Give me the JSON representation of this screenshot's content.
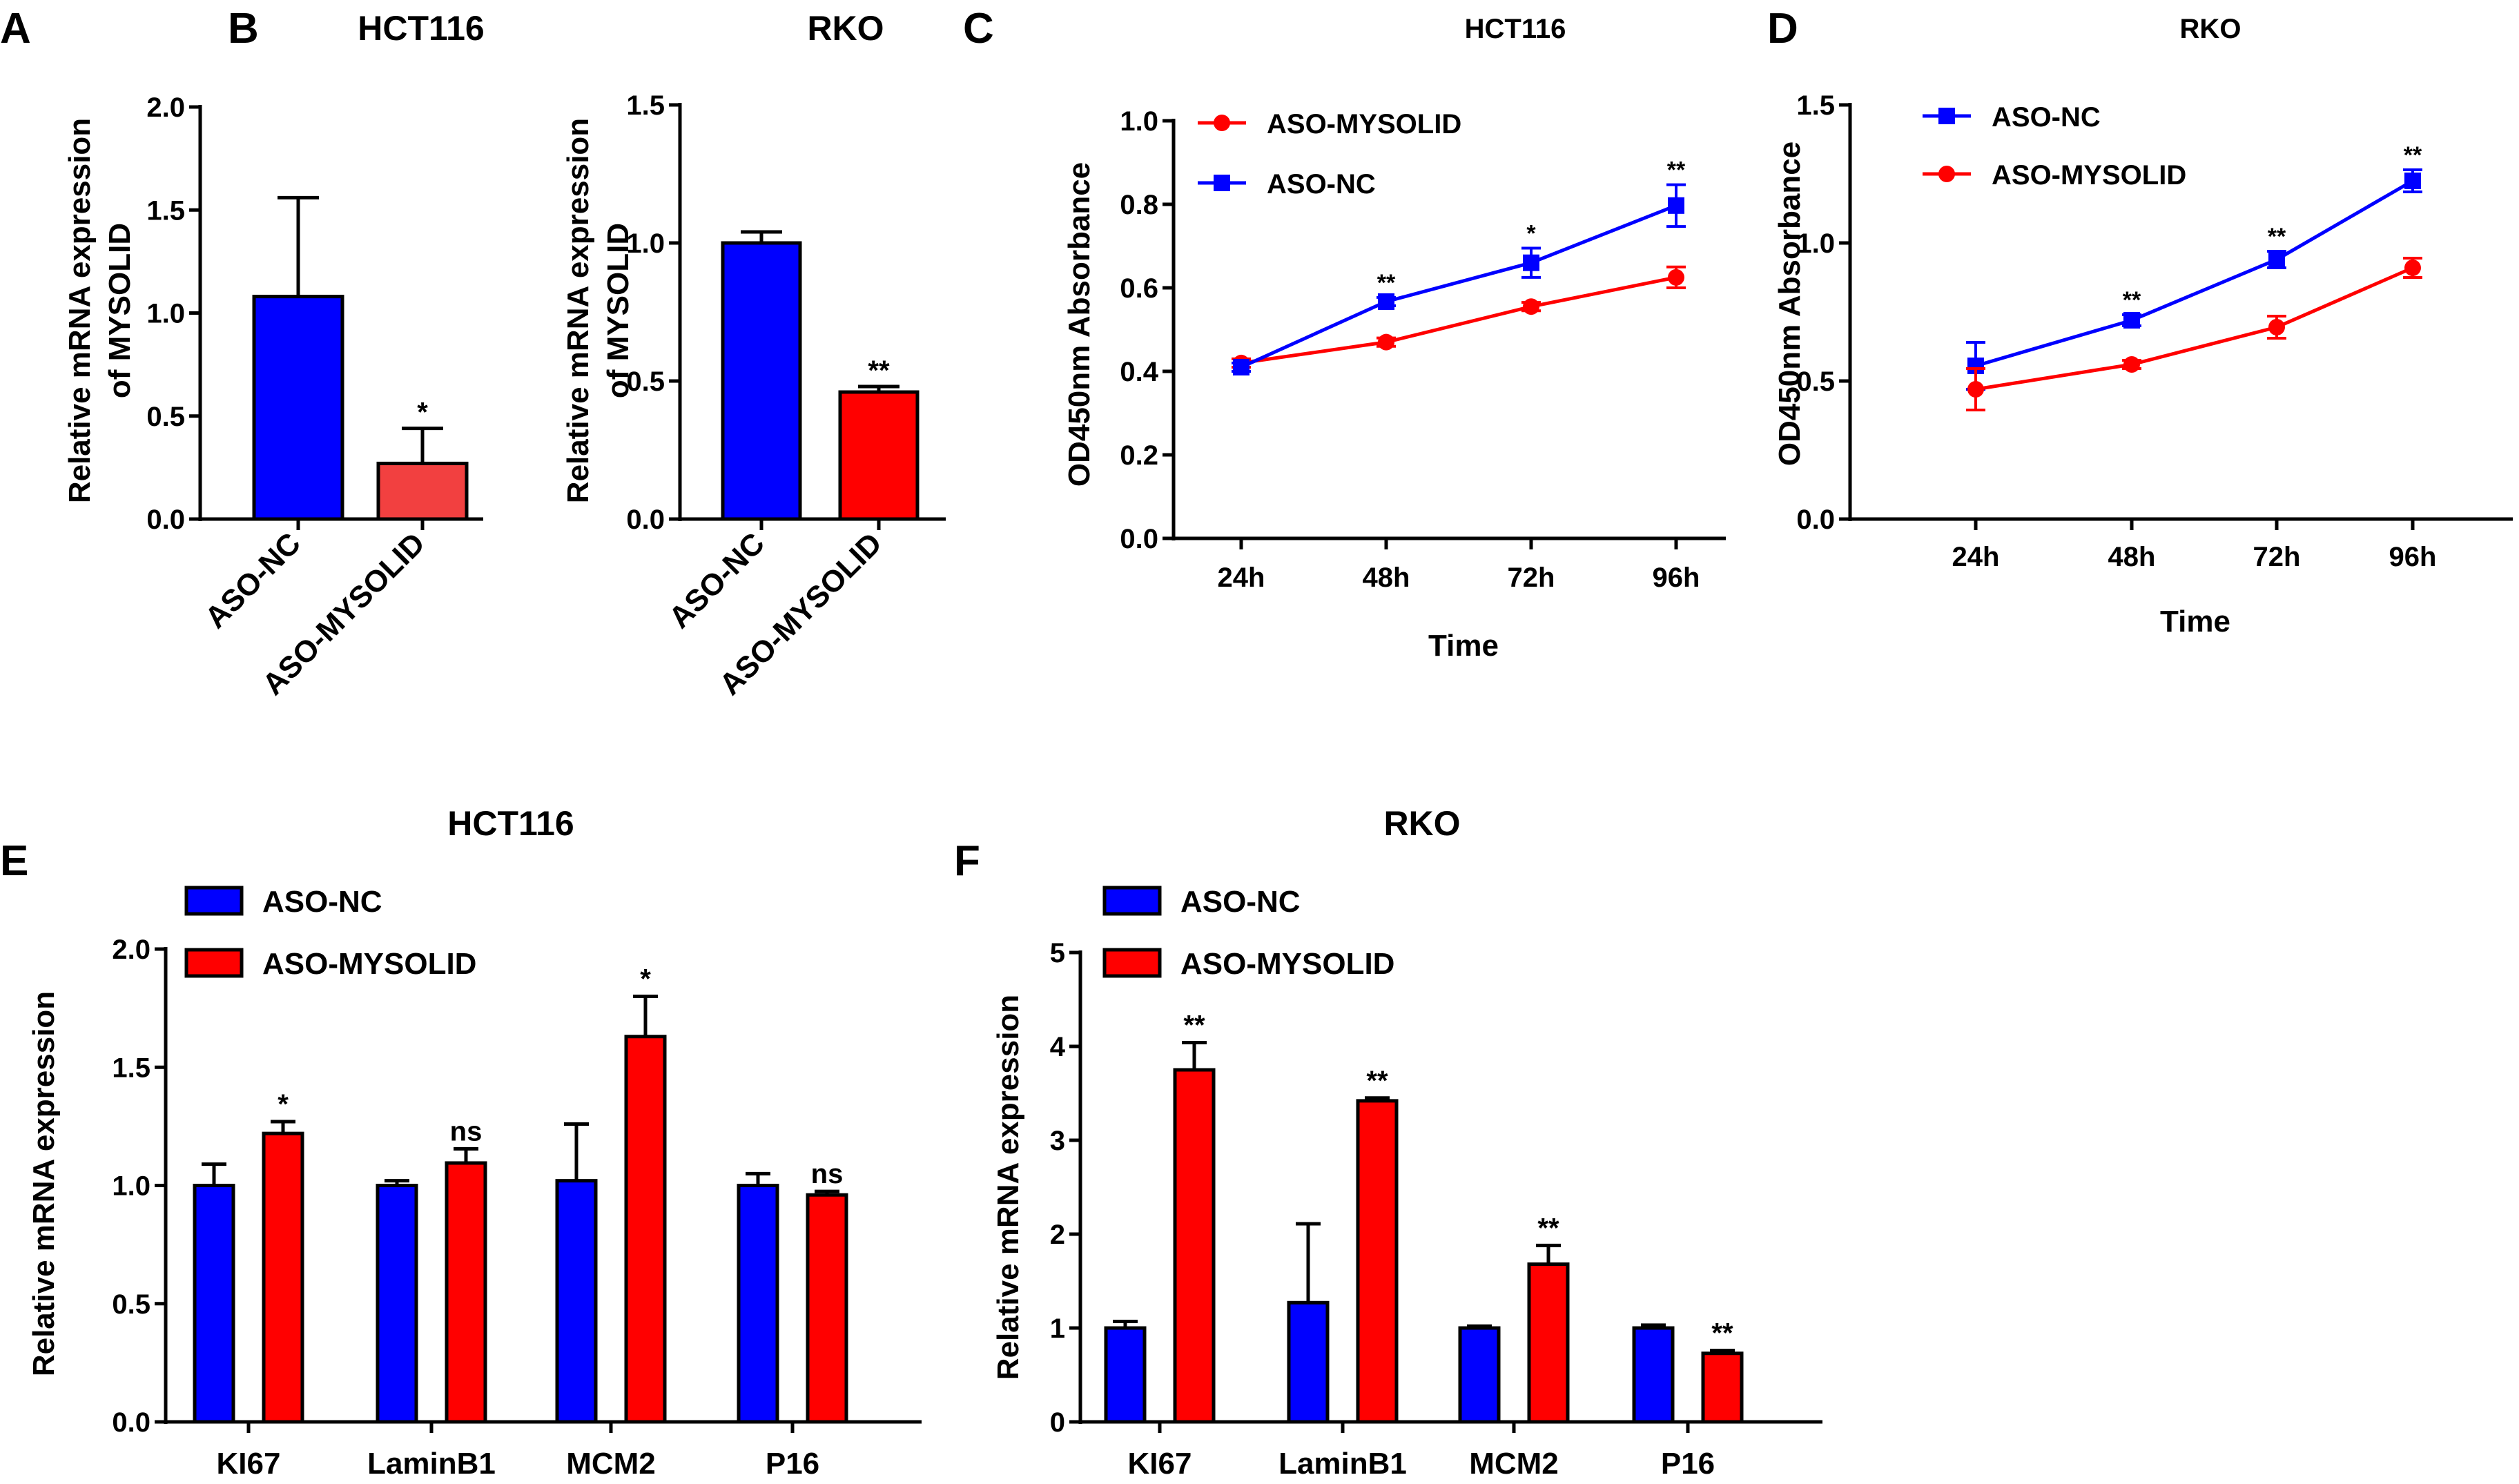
{
  "chart_data": [
    {
      "id": "A",
      "type": "bar",
      "title": "HCT116",
      "ylabel": "Relative mRNA expression of MYSOLID",
      "ylabel_lines": [
        "Relative mRNA expression",
        "of MYSOLID"
      ],
      "ylim": [
        0,
        2.0
      ],
      "yticks": [
        "0.0",
        "0.5",
        "1.0",
        "1.5",
        "2.0"
      ],
      "categories": [
        "ASO-NC",
        "ASO-MYSOLID"
      ],
      "values": [
        1.08,
        0.27
      ],
      "errors": [
        0.48,
        0.17
      ],
      "colors": [
        "#0000ff",
        "#f24040"
      ],
      "annotations": [
        "",
        "*"
      ]
    },
    {
      "id": "B",
      "type": "bar",
      "title": "RKO",
      "ylabel": "Relative mRNA expression of MYSOLID",
      "ylabel_lines": [
        "Relative mRNA expression",
        "of MYSOLID"
      ],
      "ylim": [
        0,
        1.5
      ],
      "yticks": [
        "0.0",
        "0.5",
        "1.0",
        "1.5"
      ],
      "categories": [
        "ASO-NC",
        "ASO-MYSOLID"
      ],
      "values": [
        1.0,
        0.46
      ],
      "errors": [
        0.04,
        0.02
      ],
      "colors": [
        "#0000ff",
        "#ff0000"
      ],
      "annotations": [
        "",
        "**"
      ]
    },
    {
      "id": "C",
      "type": "line",
      "title": "HCT116",
      "xlabel": "Time",
      "ylabel": "OD450nm Absorbance",
      "x": [
        "24h",
        "48h",
        "72h",
        "96h"
      ],
      "ylim": [
        0,
        1.0
      ],
      "yticks": [
        "0.0",
        "0.2",
        "0.4",
        "0.6",
        "0.8",
        "1.0"
      ],
      "legend": [
        "ASO-MYSOLID",
        "ASO-NC"
      ],
      "series": [
        {
          "name": "ASO-MYSOLID",
          "color": "#ff0000",
          "marker": "circle",
          "values": [
            0.42,
            0.47,
            0.555,
            0.625
          ],
          "errors": [
            0.01,
            0.01,
            0.01,
            0.025
          ]
        },
        {
          "name": "ASO-NC",
          "color": "#0000ff",
          "marker": "square",
          "values": [
            0.41,
            0.567,
            0.66,
            0.797
          ],
          "errors": [
            0.01,
            0.01,
            0.035,
            0.05
          ]
        }
      ],
      "annotations": [
        "",
        "**",
        "*",
        "**"
      ]
    },
    {
      "id": "D",
      "type": "line",
      "title": "RKO",
      "xlabel": "Time",
      "ylabel": "OD450nm Absorbance",
      "x": [
        "24h",
        "48h",
        "72h",
        "96h"
      ],
      "ylim": [
        0,
        1.5
      ],
      "yticks": [
        "0.0",
        "0.5",
        "1.0",
        "1.5"
      ],
      "legend": [
        "ASO-NC",
        "ASO-MYSOLID"
      ],
      "series": [
        {
          "name": "ASO-NC",
          "color": "#0000ff",
          "marker": "square",
          "values": [
            0.555,
            0.72,
            0.94,
            1.225
          ],
          "errors": [
            0.085,
            0.02,
            0.03,
            0.04
          ]
        },
        {
          "name": "ASO-MYSOLID",
          "color": "#ff0000",
          "marker": "circle",
          "values": [
            0.47,
            0.56,
            0.695,
            0.91
          ],
          "errors": [
            0.075,
            0.015,
            0.04,
            0.035
          ]
        }
      ],
      "annotations": [
        "",
        "**",
        "**",
        "**"
      ]
    },
    {
      "id": "E",
      "type": "bar",
      "title": "HCT116",
      "ylabel": "Relative mRNA expression",
      "categories": [
        "KI67",
        "LaminB1",
        "MCM2",
        "P16"
      ],
      "ylim": [
        0,
        2.0
      ],
      "yticks": [
        "0.0",
        "0.5",
        "1.0",
        "1.5",
        "2.0"
      ],
      "legend": [
        "ASO-NC",
        "ASO-MYSOLID"
      ],
      "series": [
        {
          "name": "ASO-NC",
          "color": "#0000ff",
          "values": [
            1.0,
            1.0,
            1.02,
            1.0
          ],
          "errors": [
            0.09,
            0.02,
            0.24,
            0.05
          ]
        },
        {
          "name": "ASO-MYSOLID",
          "color": "#ff0000",
          "values": [
            1.22,
            1.095,
            1.63,
            0.96
          ],
          "errors": [
            0.05,
            0.06,
            0.17,
            0.015
          ]
        }
      ],
      "annotations": [
        "*",
        "ns",
        "*",
        "ns"
      ]
    },
    {
      "id": "F",
      "type": "bar",
      "title": "RKO",
      "ylabel": "Relative mRNA expression",
      "categories": [
        "KI67",
        "LaminB1",
        "MCM2",
        "P16"
      ],
      "ylim": [
        0,
        5
      ],
      "yticks": [
        "0",
        "1",
        "2",
        "3",
        "4",
        "5"
      ],
      "legend": [
        "ASO-NC",
        "ASO-MYSOLID"
      ],
      "series": [
        {
          "name": "ASO-NC",
          "color": "#0000ff",
          "values": [
            1.0,
            1.27,
            1.0,
            1.0
          ],
          "errors": [
            0.07,
            0.84,
            0.02,
            0.03
          ]
        },
        {
          "name": "ASO-MYSOLID",
          "color": "#ff0000",
          "values": [
            3.75,
            3.42,
            1.68,
            0.73
          ],
          "errors": [
            0.29,
            0.03,
            0.2,
            0.03
          ]
        }
      ],
      "annotations": [
        "**",
        "**",
        "**",
        "**"
      ]
    }
  ]
}
